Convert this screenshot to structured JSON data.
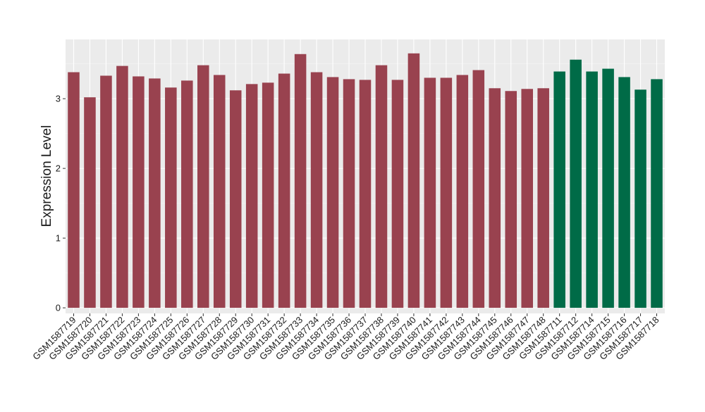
{
  "chart_data": {
    "type": "bar",
    "title": "",
    "xlabel": "",
    "ylabel": "Expression Level",
    "ylim": [
      -0.08,
      3.85
    ],
    "yticks": [
      0,
      1,
      2,
      3
    ],
    "grid": true,
    "legend": "none",
    "colors": {
      "panel": "#ebebeb",
      "group_a": "#99424f",
      "group_b": "#006b47"
    },
    "categories": [
      "GSM1587719",
      "GSM1587720",
      "GSM1587721",
      "GSM1587722",
      "GSM1587723",
      "GSM1587724",
      "GSM1587725",
      "GSM1587726",
      "GSM1587727",
      "GSM1587728",
      "GSM1587729",
      "GSM1587730",
      "GSM1587731",
      "GSM1587732",
      "GSM1587733",
      "GSM1587734",
      "GSM1587735",
      "GSM1587736",
      "GSM1587737",
      "GSM1587738",
      "GSM1587739",
      "GSM1587740",
      "GSM1587741",
      "GSM1587742",
      "GSM1587743",
      "GSM1587744",
      "GSM1587745",
      "GSM1587746",
      "GSM1587747",
      "GSM1587748",
      "GSM1587711",
      "GSM1587712",
      "GSM1587714",
      "GSM1587715",
      "GSM1587716",
      "GSM1587717",
      "GSM1587718"
    ],
    "values": [
      3.38,
      3.02,
      3.33,
      3.47,
      3.32,
      3.29,
      3.16,
      3.26,
      3.48,
      3.34,
      3.12,
      3.21,
      3.23,
      3.36,
      3.64,
      3.38,
      3.31,
      3.28,
      3.27,
      3.48,
      3.27,
      3.65,
      3.3,
      3.3,
      3.34,
      3.41,
      3.15,
      3.11,
      3.14,
      3.15,
      3.39,
      3.56,
      3.39,
      3.43,
      3.31,
      3.13,
      3.28
    ],
    "groups": [
      "a",
      "a",
      "a",
      "a",
      "a",
      "a",
      "a",
      "a",
      "a",
      "a",
      "a",
      "a",
      "a",
      "a",
      "a",
      "a",
      "a",
      "a",
      "a",
      "a",
      "a",
      "a",
      "a",
      "a",
      "a",
      "a",
      "a",
      "a",
      "a",
      "a",
      "b",
      "b",
      "b",
      "b",
      "b",
      "b",
      "b"
    ]
  }
}
